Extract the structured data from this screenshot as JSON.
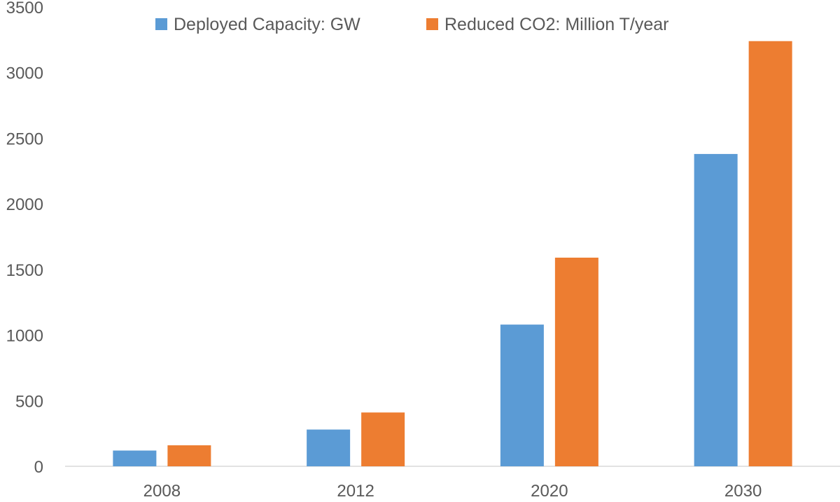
{
  "chart_data": {
    "type": "bar",
    "title": "",
    "xlabel": "",
    "ylabel": "",
    "categories": [
      "2008",
      "2012",
      "2020",
      "2030"
    ],
    "series": [
      {
        "name": "Deployed Capacity: GW",
        "color": "#5B9BD5",
        "values": [
          120,
          280,
          1080,
          2380
        ]
      },
      {
        "name": "Reduced CO2: Million T/year",
        "color": "#ED7D31",
        "values": [
          160,
          410,
          1590,
          3240
        ]
      }
    ],
    "ylim": [
      0,
      3500
    ],
    "yticks": [
      "0",
      "500",
      "1000",
      "1500",
      "2000",
      "2500",
      "3000",
      "3500"
    ],
    "grid": false,
    "legend": "top-center"
  }
}
